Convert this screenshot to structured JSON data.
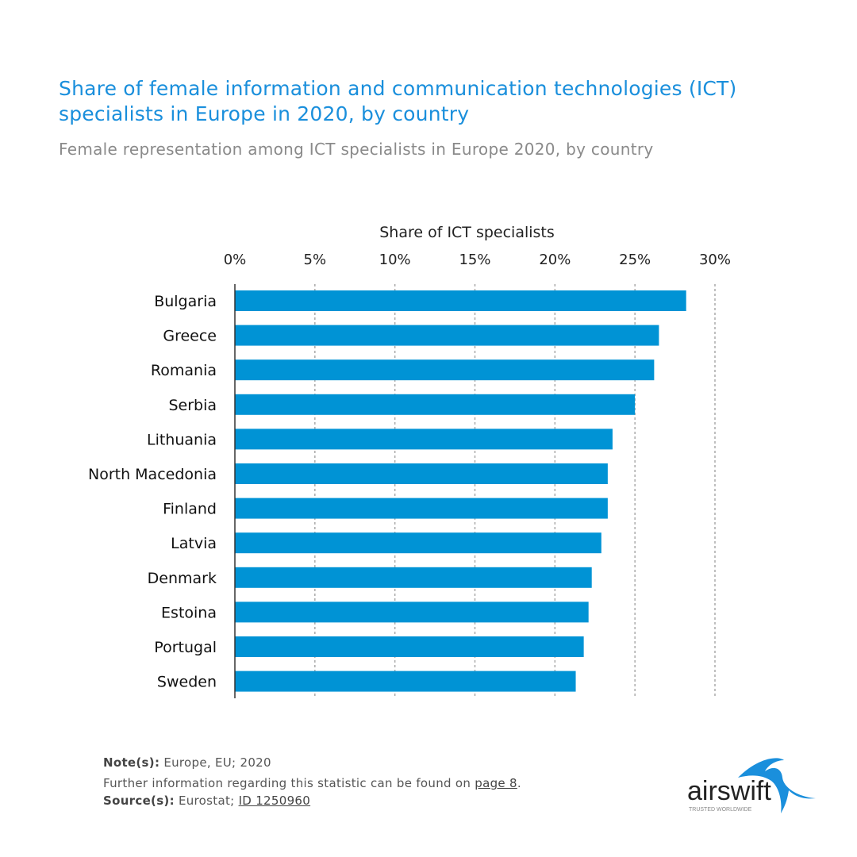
{
  "chart_data": {
    "type": "bar",
    "orientation": "horizontal",
    "title": "Share of female information and communication technologies (ICT) specialists in Europe in 2020, by country",
    "subtitle": "Female representation among ICT specialists in Europe 2020, by country",
    "xlabel": "Share of ICT specialists",
    "ylabel": "",
    "xlim": [
      0,
      30
    ],
    "xticks": [
      "0%",
      "5%",
      "10%",
      "15%",
      "20%",
      "25%",
      "30%"
    ],
    "xtick_values": [
      0,
      5,
      10,
      15,
      20,
      25,
      30
    ],
    "axis_position": "top",
    "grid": "vertical dotted",
    "categories": [
      "Bulgaria",
      "Greece",
      "Romania",
      "Serbia",
      "Lithuania",
      "North Macedonia",
      "Finland",
      "Latvia",
      "Denmark",
      "Estoina",
      "Portugal",
      "Sweden"
    ],
    "values": [
      28.2,
      26.5,
      26.2,
      25.0,
      23.6,
      23.3,
      23.3,
      22.9,
      22.3,
      22.1,
      21.8,
      21.3
    ],
    "bar_color": "#0093d5"
  },
  "footer": {
    "note_label": "Note(s):",
    "note_text": " Europe, EU; 2020",
    "further_text": "Further information regarding this statistic can be found on ",
    "further_link": "page 8",
    "further_end": ".",
    "source_label": "Source(s):",
    "source_text": " Eurostat; ",
    "source_link": "ID 1250960"
  },
  "logo": {
    "name": "airswift",
    "tagline": "TRUSTED WORLDWIDE"
  }
}
